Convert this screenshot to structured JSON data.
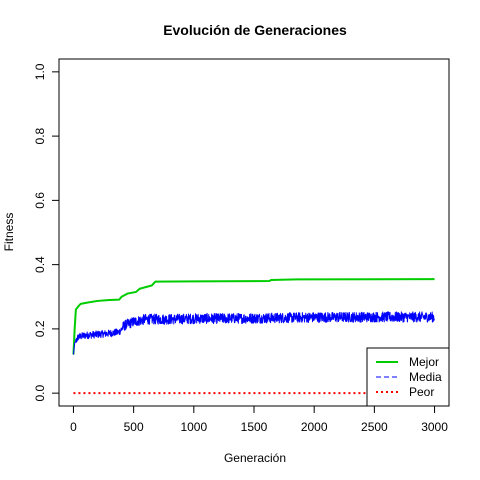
{
  "chart_data": {
    "type": "line",
    "title": "Evolución de Generaciones",
    "xlabel": "Generación",
    "ylabel": "Fitness",
    "xlim": [
      0,
      3000
    ],
    "ylim": [
      0.0,
      1.0
    ],
    "x_ticks": [
      "0",
      "500",
      "1000",
      "1500",
      "2000",
      "2500",
      "3000"
    ],
    "y_ticks": [
      "0.0",
      "0.2",
      "0.4",
      "0.6",
      "0.8",
      "1.0"
    ],
    "grid": false,
    "legend_position": "bottom-right",
    "series": [
      {
        "name": "Mejor",
        "color": "#00CD00",
        "style": "solid",
        "points": [
          [
            0,
            0.12
          ],
          [
            10,
            0.2
          ],
          [
            20,
            0.26
          ],
          [
            40,
            0.27
          ],
          [
            60,
            0.278
          ],
          [
            120,
            0.282
          ],
          [
            200,
            0.287
          ],
          [
            300,
            0.29
          ],
          [
            380,
            0.291
          ],
          [
            400,
            0.3
          ],
          [
            450,
            0.31
          ],
          [
            520,
            0.315
          ],
          [
            550,
            0.325
          ],
          [
            600,
            0.33
          ],
          [
            650,
            0.335
          ],
          [
            680,
            0.347
          ],
          [
            1000,
            0.348
          ],
          [
            1630,
            0.349
          ],
          [
            1640,
            0.352
          ],
          [
            1860,
            0.354
          ],
          [
            3000,
            0.355
          ]
        ]
      },
      {
        "name": "Media",
        "color": "#0000FF",
        "style": "dashed",
        "points": [
          [
            0,
            0.12
          ],
          [
            10,
            0.155
          ],
          [
            40,
            0.175
          ],
          [
            100,
            0.18
          ],
          [
            200,
            0.183
          ],
          [
            300,
            0.186
          ],
          [
            380,
            0.19
          ],
          [
            420,
            0.21
          ],
          [
            500,
            0.222
          ],
          [
            600,
            0.23
          ],
          [
            800,
            0.23
          ],
          [
            1000,
            0.232
          ],
          [
            1500,
            0.233
          ],
          [
            2000,
            0.236
          ],
          [
            2500,
            0.237
          ],
          [
            3000,
            0.237
          ]
        ],
        "noise_amplitude": 0.016
      },
      {
        "name": "Peor",
        "color": "#FF0000",
        "style": "dotted",
        "points": [
          [
            0,
            0.0
          ],
          [
            3000,
            0.0
          ]
        ]
      }
    ]
  }
}
